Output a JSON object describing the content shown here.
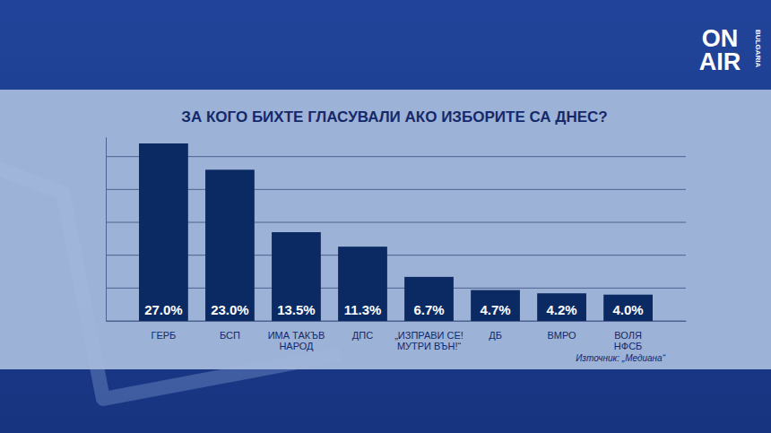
{
  "chart_data": {
    "type": "bar",
    "title": "ЗА КОГО БИХТЕ ГЛАСУВАЛИ АКО ИЗБОРИТЕ СА ДНЕС?",
    "categories": [
      "ГЕРБ",
      "БСП",
      "ИМА ТАКЪВ НАРОД",
      "ДПС",
      "„ИЗПРАВИ СЕ! МУТРИ ВЪН!“",
      "ДБ",
      "ВМРО",
      "ВОЛЯ НФСБ"
    ],
    "values": [
      27.0,
      23.0,
      13.5,
      11.3,
      6.7,
      4.7,
      4.2,
      4.0
    ],
    "value_labels": [
      "27.0%",
      "23.0%",
      "13.5%",
      "11.3%",
      "6.7%",
      "4.7%",
      "4.2%",
      "4.0%"
    ],
    "color": "#0b2a63",
    "ylim": [
      0,
      28
    ],
    "yticks": [
      0,
      5,
      10,
      15,
      20,
      25
    ],
    "grid": true,
    "data_labels": true,
    "tick_labels": "x",
    "annotations": [
      "Източник: „Медиана“",
      "ON",
      "AIR",
      "BULGARIA"
    ]
  }
}
